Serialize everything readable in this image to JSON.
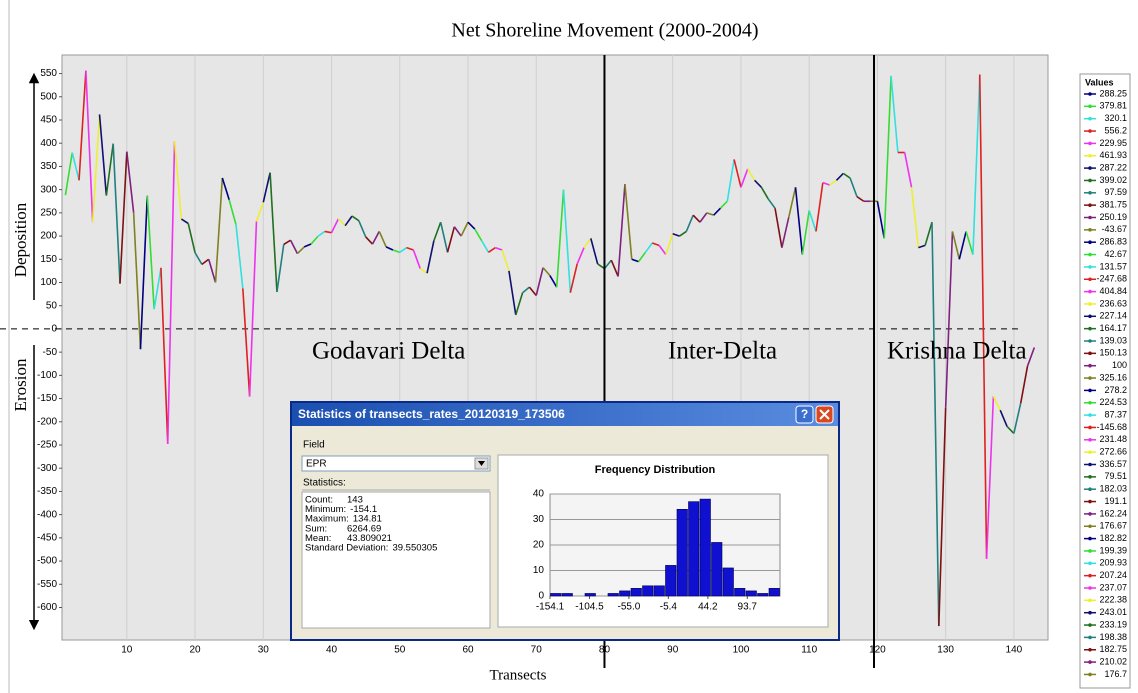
{
  "chart_data": [
    {
      "type": "line",
      "title": "Net Shoreline Movement (2000-2004)",
      "x_label": "Transects",
      "annotations": [
        "Godavari Delta",
        "Inter-Delta",
        "Krishna Delta",
        "Deposition",
        "Erosion"
      ],
      "legend_title": "Values",
      "colors": [
        "#000080",
        "#33dd33",
        "#33e0e0",
        "#e02020",
        "#ee33ee",
        "#eeee33",
        "#101070",
        "#207020",
        "#208080",
        "#801010",
        "#802080",
        "#808020"
      ],
      "x": [
        1,
        2,
        3,
        4,
        5,
        6,
        7,
        8,
        9,
        10,
        11,
        12,
        13,
        14,
        15,
        16,
        17,
        18,
        19,
        20,
        21,
        22,
        23,
        24,
        25,
        26,
        27,
        28,
        29,
        30,
        31,
        32,
        33,
        34,
        35,
        36,
        37,
        38,
        39,
        40,
        41,
        42,
        43,
        44,
        45,
        46,
        47,
        48,
        49,
        50,
        51,
        52,
        53,
        54,
        55,
        56,
        57,
        58,
        59,
        60,
        61,
        62,
        63,
        64,
        65,
        66,
        67,
        68,
        69,
        70,
        71,
        72,
        73,
        74,
        75,
        76,
        77,
        78,
        79,
        80,
        81,
        82,
        83,
        84,
        85,
        86,
        87,
        88,
        89,
        90,
        91,
        92,
        93,
        94,
        95,
        96,
        97,
        98,
        99,
        100,
        101,
        102,
        103,
        104,
        105,
        106,
        107,
        108,
        109,
        110,
        111,
        112,
        113,
        114,
        115,
        116,
        117,
        118,
        119,
        120,
        121,
        122,
        123,
        124,
        125,
        126,
        127,
        128,
        129,
        130,
        131,
        132,
        133,
        134,
        135,
        136,
        137,
        138,
        139,
        140,
        141,
        142,
        143
      ],
      "values": [
        288.25,
        379.81,
        320.1,
        556.2,
        229.95,
        461.93,
        287.22,
        399.02,
        97.59,
        381.75,
        250.19,
        -43.67,
        286.83,
        42.67,
        131.57,
        -247.68,
        404.84,
        236.63,
        227.14,
        164.17,
        139.03,
        150.13,
        100,
        325.16,
        278.2,
        224.53,
        87.37,
        -145.68,
        231.48,
        272.66,
        336.57,
        79.51,
        182.03,
        191.1,
        162.24,
        176.67,
        182.82,
        199.39,
        209.93,
        207.24,
        237.07,
        222.38,
        243.01,
        233.19,
        198.38,
        182.75,
        210.02,
        176.7,
        170,
        165,
        175,
        170,
        130,
        120,
        190,
        230,
        165,
        220,
        200,
        230,
        215,
        190,
        165,
        175,
        170,
        125,
        30,
        78,
        90,
        72,
        132,
        115,
        90,
        300,
        78,
        140,
        175,
        195,
        140,
        130,
        148,
        113,
        312,
        150,
        145,
        165,
        185,
        180,
        160,
        205,
        200,
        210,
        245,
        230,
        250,
        245,
        260,
        275,
        365,
        305,
        345,
        320,
        305,
        280,
        260,
        175,
        240,
        305,
        160,
        255,
        210,
        315,
        310,
        320,
        335,
        325,
        285,
        275,
        275,
        275,
        195,
        545,
        380,
        380,
        305,
        175,
        180,
        230,
        -640,
        -170,
        210,
        150,
        210,
        160,
        548,
        -495,
        -145,
        -175,
        -210,
        -225,
        -160,
        -80,
        -40
      ],
      "xlim": [
        0.5,
        145
      ],
      "ylim": [
        -670,
        590
      ],
      "xticks": [
        10,
        20,
        30,
        40,
        50,
        60,
        70,
        80,
        90,
        100,
        110,
        120,
        130,
        140
      ],
      "yticks": [
        550,
        500,
        450,
        400,
        350,
        300,
        250,
        200,
        150,
        100,
        50,
        0,
        -50,
        -100,
        -150,
        -200,
        -250,
        -300,
        -350,
        -400,
        -450,
        -500,
        -550,
        -600
      ],
      "dividers": [
        80,
        119.5
      ],
      "reference_line": 0,
      "grid": true
    },
    {
      "type": "histogram",
      "title": "Frequency Distribution",
      "color": "#1010d0",
      "bins": [
        -154.1,
        -139.66,
        -125.21,
        -110.77,
        -96.32,
        -81.88,
        -67.43,
        -52.99,
        -38.54,
        -24.1,
        -9.65,
        4.79,
        19.24,
        33.68,
        48.13,
        62.57,
        77.02,
        91.46,
        105.91,
        120.35,
        134.81
      ],
      "values": [
        1,
        1,
        0,
        1,
        0,
        1,
        2,
        3,
        4,
        4,
        12,
        34,
        37,
        38,
        21,
        11,
        3,
        2,
        1,
        3
      ],
      "xlim": [
        -154.1,
        134.81
      ],
      "ylim": [
        0,
        40
      ],
      "yticks": [
        0,
        10,
        20,
        30,
        40
      ],
      "xticks": [
        -154.1,
        -104.5,
        {
          "value": -55,
          "label": "-55.0"
        },
        -5.4,
        44.2,
        93.7
      ]
    }
  ],
  "dialog": {
    "title": "Statistics of transects_rates_20120319_173506",
    "help_button": "?",
    "field_label": "Field",
    "field_value": "EPR",
    "statistics_label": "Statistics:",
    "stats": [
      {
        "label": "Count:",
        "value": 143
      },
      {
        "label": "Minimum:",
        "value": -154.1
      },
      {
        "label": "Maximum:",
        "value": 134.81
      },
      {
        "label": "Sum:",
        "value": 6264.69
      },
      {
        "label": "Mean:",
        "value": 43.809021
      },
      {
        "label": "Standard Deviation:",
        "value": 39.550305
      }
    ]
  }
}
